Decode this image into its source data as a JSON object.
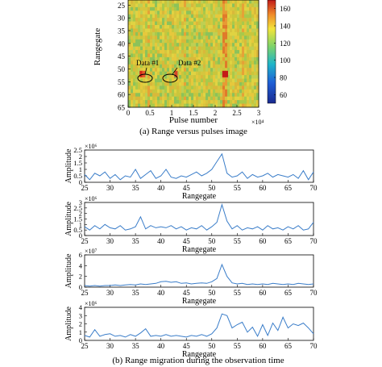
{
  "chart_data": [
    {
      "type": "heatmap",
      "caption": "(a) Range versus pulses image",
      "xlabel": "Pulse number",
      "ylabel": "Rangegate",
      "x_multiplier_label": "×10⁴",
      "xticks": [
        "0",
        "0.5",
        "1",
        "1.5",
        "2",
        "2.5",
        "3"
      ],
      "xlim": [
        0,
        3
      ],
      "yticks": [
        "25",
        "30",
        "35",
        "40",
        "45",
        "50",
        "55",
        "60",
        "65"
      ],
      "ylim": [
        23,
        65
      ],
      "colorbar": {
        "ticks": [
          "60",
          "80",
          "100",
          "120",
          "140",
          "160"
        ],
        "range": [
          50,
          170
        ]
      },
      "annotations": [
        {
          "text": "Data #1",
          "pulse": 0.27,
          "rangegate": 52
        },
        {
          "text": "Data #2",
          "pulse": 1.0,
          "rangegate": 52
        }
      ]
    },
    {
      "type": "line",
      "xlabel": "Rangegate",
      "ylabel": "Amplitude",
      "multiplier_label": "×10⁶",
      "xticks": [
        "25",
        "30",
        "35",
        "40",
        "45",
        "50",
        "55",
        "60",
        "65",
        "70"
      ],
      "yticks": [
        "0",
        "0.5",
        "1",
        "1.5",
        "2",
        "2.5"
      ],
      "xlim": [
        25,
        70
      ],
      "ylim": [
        0,
        2.5
      ],
      "x": [
        25,
        26,
        27,
        28,
        29,
        30,
        31,
        32,
        33,
        34,
        35,
        36,
        37,
        38,
        39,
        40,
        41,
        42,
        43,
        44,
        45,
        46,
        47,
        48,
        49,
        50,
        51,
        52,
        53,
        54,
        55,
        56,
        57,
        58,
        59,
        60,
        61,
        62,
        63,
        64,
        65,
        66,
        67,
        68,
        69,
        70
      ],
      "values": [
        0.6,
        0.2,
        0.7,
        0.5,
        0.8,
        0.3,
        0.6,
        0.2,
        0.5,
        0.4,
        1.0,
        0.3,
        0.6,
        0.9,
        0.3,
        0.5,
        1.0,
        0.4,
        0.3,
        0.5,
        0.4,
        0.6,
        0.8,
        0.5,
        0.7,
        1.0,
        1.6,
        2.2,
        0.7,
        0.4,
        0.5,
        0.8,
        0.3,
        0.6,
        0.4,
        0.5,
        0.7,
        0.4,
        0.6,
        0.5,
        0.4,
        0.6,
        0.3,
        0.9,
        0.2,
        0.8
      ]
    },
    {
      "type": "line",
      "xlabel": "Rangegate",
      "ylabel": "Amplitude",
      "multiplier_label": "×10⁶",
      "xticks": [
        "25",
        "30",
        "35",
        "40",
        "45",
        "50",
        "55",
        "60",
        "65",
        "70"
      ],
      "yticks": [
        "0",
        "0.5",
        "1",
        "1.5",
        "2",
        "2.5",
        "3"
      ],
      "xlim": [
        25,
        70
      ],
      "ylim": [
        0,
        3
      ],
      "x": [
        25,
        26,
        27,
        28,
        29,
        30,
        31,
        32,
        33,
        34,
        35,
        36,
        37,
        38,
        39,
        40,
        41,
        42,
        43,
        44,
        45,
        46,
        47,
        48,
        49,
        50,
        51,
        52,
        53,
        54,
        55,
        56,
        57,
        58,
        59,
        60,
        61,
        62,
        63,
        64,
        65,
        66,
        67,
        68,
        69,
        70
      ],
      "values": [
        0.8,
        0.5,
        0.9,
        0.6,
        1.0,
        0.7,
        0.6,
        0.9,
        0.5,
        0.6,
        0.8,
        1.7,
        0.6,
        0.9,
        0.7,
        0.8,
        0.7,
        0.9,
        0.6,
        0.8,
        0.5,
        0.7,
        0.6,
        0.9,
        0.5,
        0.8,
        1.2,
        2.8,
        1.3,
        0.6,
        0.9,
        0.5,
        0.7,
        0.6,
        0.8,
        0.5,
        0.9,
        0.6,
        0.7,
        0.5,
        0.8,
        0.6,
        0.9,
        0.5,
        0.6,
        1.2
      ]
    },
    {
      "type": "line",
      "xlabel": "Rangegate",
      "ylabel": "Amplitude",
      "multiplier_label": "×10⁷",
      "xticks": [
        "25",
        "30",
        "35",
        "40",
        "45",
        "50",
        "55",
        "60",
        "65",
        "70"
      ],
      "yticks": [
        "0",
        "2",
        "4",
        "6"
      ],
      "xlim": [
        25,
        70
      ],
      "ylim": [
        0,
        6
      ],
      "x": [
        25,
        26,
        27,
        28,
        29,
        30,
        31,
        32,
        33,
        34,
        35,
        36,
        37,
        38,
        39,
        40,
        41,
        42,
        43,
        44,
        45,
        46,
        47,
        48,
        49,
        50,
        51,
        52,
        53,
        54,
        55,
        56,
        57,
        58,
        59,
        60,
        61,
        62,
        63,
        64,
        65,
        66,
        67,
        68,
        69,
        70
      ],
      "values": [
        0.3,
        0.2,
        0.3,
        0.2,
        0.3,
        0.3,
        0.4,
        0.3,
        0.4,
        0.5,
        0.4,
        0.6,
        0.5,
        0.6,
        0.7,
        1.0,
        1.1,
        0.9,
        1.0,
        0.7,
        0.8,
        0.6,
        0.7,
        0.8,
        0.7,
        1.0,
        1.6,
        4.2,
        2.0,
        0.8,
        0.6,
        0.7,
        0.5,
        0.6,
        0.5,
        0.6,
        0.5,
        0.7,
        0.6,
        0.5,
        0.6,
        0.5,
        0.7,
        0.6,
        0.5,
        0.6
      ]
    },
    {
      "type": "line",
      "xlabel": "Rangegate",
      "ylabel": "Amplitude",
      "multiplier_label": "×10⁶",
      "xticks": [
        "25",
        "30",
        "35",
        "40",
        "45",
        "50",
        "55",
        "60",
        "65",
        "70"
      ],
      "yticks": [
        "0",
        "1",
        "2",
        "3",
        "4"
      ],
      "xlim": [
        25,
        70
      ],
      "ylim": [
        0,
        4
      ],
      "x": [
        25,
        26,
        27,
        28,
        29,
        30,
        31,
        32,
        33,
        34,
        35,
        36,
        37,
        38,
        39,
        40,
        41,
        42,
        43,
        44,
        45,
        46,
        47,
        48,
        49,
        50,
        51,
        52,
        53,
        54,
        55,
        56,
        57,
        58,
        59,
        60,
        61,
        62,
        63,
        64,
        65,
        66,
        67,
        68,
        69,
        70
      ],
      "values": [
        0.6,
        0.4,
        1.3,
        0.5,
        0.7,
        0.8,
        0.5,
        0.6,
        0.4,
        0.7,
        0.5,
        0.9,
        1.4,
        0.5,
        0.6,
        0.5,
        0.7,
        0.5,
        0.6,
        0.5,
        0.4,
        0.6,
        0.5,
        0.7,
        0.5,
        0.8,
        1.5,
        3.2,
        3.0,
        1.5,
        1.9,
        2.2,
        1.0,
        1.6,
        0.5,
        1.9,
        0.6,
        2.1,
        1.2,
        2.8,
        1.5,
        2.0,
        1.8,
        2.1,
        1.5,
        0.8
      ]
    }
  ],
  "caption_b": "(b) Range migration during the observation time",
  "colors": {
    "line": "#3a7dc9",
    "axis": "#000000"
  }
}
